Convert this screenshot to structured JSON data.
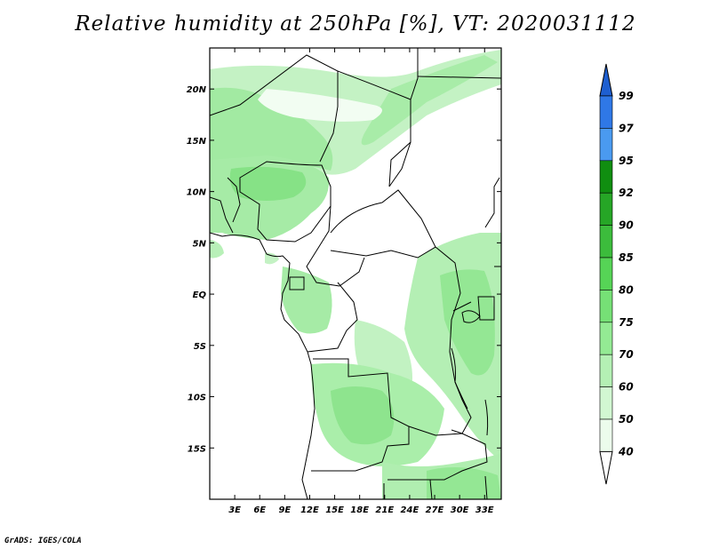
{
  "title": "Relative humidity at 250hPa [%], VT: 2020031112",
  "credit": "GrADS: IGES/COLA",
  "map": {
    "lon_ticks": [
      "3E",
      "6E",
      "9E",
      "12E",
      "15E",
      "18E",
      "21E",
      "24E",
      "27E",
      "30E",
      "33E"
    ],
    "lat_ticks": [
      "20N",
      "15N",
      "10N",
      "5N",
      "EQ",
      "5S",
      "10S",
      "15S"
    ],
    "lon_range": [
      0,
      35
    ],
    "lat_range": [
      -20,
      24
    ]
  },
  "colorbar": {
    "labels": [
      "99",
      "97",
      "95",
      "92",
      "90",
      "85",
      "80",
      "75",
      "70",
      "60",
      "50",
      "40"
    ],
    "colors": [
      "#1e5fd0",
      "#2f78e6",
      "#4a9af0",
      "#108e10",
      "#26a626",
      "#3cbc3c",
      "#56d456",
      "#76e076",
      "#94ea94",
      "#b4f0b4",
      "#d2f7d2",
      "#ecfcec"
    ]
  }
}
